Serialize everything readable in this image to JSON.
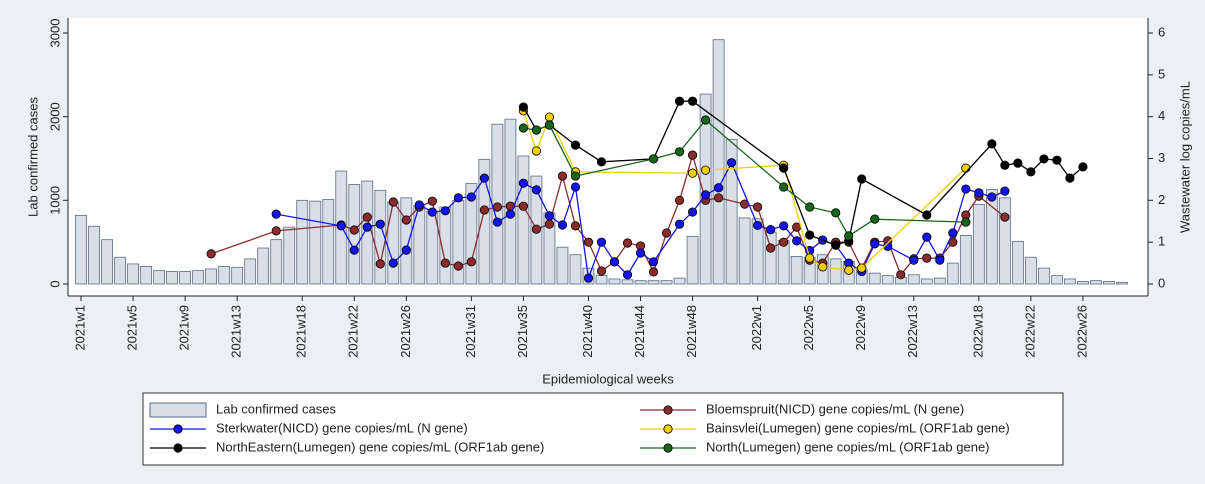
{
  "chart_data": {
    "type": "combo",
    "x_label": "Epidemiological weeks",
    "y_label": "Lab confirmed cases",
    "y2_label": "Wastewater log copies/mL",
    "xlim": [
      0,
      83
    ],
    "ylim": [
      0,
      3000
    ],
    "yticks": [
      0,
      1000,
      2000,
      3000
    ],
    "y2lim": [
      0,
      6
    ],
    "y2ticks": [
      0,
      1,
      2,
      3,
      4,
      5,
      6
    ],
    "xticks": [
      {
        "value": 1,
        "label": "2021w1"
      },
      {
        "value": 5,
        "label": "2021w5"
      },
      {
        "value": 9,
        "label": "2021w9"
      },
      {
        "value": 13,
        "label": "2021w13"
      },
      {
        "value": 18,
        "label": "2021w18"
      },
      {
        "value": 22,
        "label": "2021w22"
      },
      {
        "value": 26,
        "label": "2021w26"
      },
      {
        "value": 31,
        "label": "2021w31"
      },
      {
        "value": 35,
        "label": "2021w35"
      },
      {
        "value": 40,
        "label": "2021w40"
      },
      {
        "value": 44,
        "label": "2021w44"
      },
      {
        "value": 48,
        "label": "2021w48"
      },
      {
        "value": 53,
        "label": "2022w1"
      },
      {
        "value": 57,
        "label": "2022w5"
      },
      {
        "value": 61,
        "label": "2022w9"
      },
      {
        "value": 65,
        "label": "2022w13"
      },
      {
        "value": 70,
        "label": "2022w18"
      },
      {
        "value": 74,
        "label": "2022w22"
      },
      {
        "value": 78,
        "label": "2022w26"
      }
    ],
    "series": [
      {
        "name": "Lab confirmed cases",
        "type": "bar",
        "color": "#d9dfe9",
        "edge": "#5a6b85",
        "x": [
          1,
          2,
          3,
          4,
          5,
          6,
          7,
          8,
          9,
          10,
          11,
          12,
          13,
          14,
          15,
          16,
          17,
          18,
          19,
          20,
          21,
          22,
          23,
          24,
          25,
          26,
          27,
          28,
          29,
          30,
          31,
          32,
          33,
          34,
          35,
          36,
          37,
          38,
          39,
          40,
          41,
          42,
          43,
          44,
          45,
          46,
          47,
          48,
          49,
          50,
          51,
          52,
          53,
          54,
          55,
          56,
          57,
          58,
          59,
          60,
          61,
          62,
          63,
          64,
          65,
          66,
          67,
          68,
          69,
          70,
          71,
          72,
          73,
          74,
          75,
          76,
          77,
          78,
          79,
          80,
          81
        ],
        "values": [
          820,
          690,
          530,
          320,
          240,
          210,
          160,
          150,
          150,
          160,
          180,
          210,
          200,
          300,
          430,
          530,
          680,
          1000,
          990,
          1010,
          1350,
          1190,
          1230,
          1120,
          980,
          1030,
          940,
          870,
          920,
          1000,
          1200,
          1490,
          1910,
          1970,
          1530,
          1290,
          850,
          440,
          350,
          190,
          100,
          60,
          50,
          40,
          40,
          40,
          70,
          570,
          2270,
          2920,
          1730,
          790,
          780,
          620,
          520,
          330,
          320,
          350,
          300,
          270,
          170,
          130,
          100,
          80,
          110,
          60,
          70,
          250,
          580,
          950,
          1130,
          1030,
          510,
          320,
          190,
          100,
          60,
          30,
          40,
          30,
          20
        ]
      },
      {
        "name": "Bloemspruit(NICD) gene copies/mL (N gene)",
        "type": "line",
        "axis": "y2",
        "color": "#8b2c2c",
        "x": [
          11,
          16,
          21,
          22,
          23,
          24,
          25,
          26,
          27,
          28,
          29,
          30,
          31,
          32,
          33,
          34,
          35,
          36,
          37,
          38,
          39,
          40,
          41,
          42,
          43,
          44,
          45,
          46,
          47,
          48,
          49,
          50,
          52,
          53,
          54,
          55,
          56,
          57,
          58,
          59,
          60,
          61,
          62,
          63,
          64,
          65,
          66,
          67,
          68,
          69,
          70,
          72
        ],
        "values": [
          0.72,
          1.27,
          1.41,
          1.29,
          1.6,
          0.48,
          1.96,
          1.53,
          1.84,
          1.98,
          0.5,
          0.43,
          0.53,
          1.77,
          1.84,
          1.86,
          1.86,
          1.31,
          1.43,
          2.58,
          1.39,
          1.0,
          0.31,
          0.53,
          0.98,
          0.91,
          0.29,
          1.22,
          2.0,
          3.08,
          2.0,
          2.06,
          1.91,
          1.84,
          0.86,
          1.0,
          1.36,
          0.57,
          0.5,
          1.0,
          1.0,
          0.38,
          1.0,
          1.03,
          0.22,
          0.6,
          0.62,
          0.62,
          1.0,
          1.65,
          2.1,
          1.6
        ]
      },
      {
        "name": "Sterkwater(NICD) gene copies/mL (N gene)",
        "type": "line",
        "axis": "y2",
        "color": "#1414ee",
        "x": [
          16,
          21,
          22,
          23,
          24,
          25,
          26,
          27,
          28,
          29,
          30,
          31,
          32,
          33,
          34,
          35,
          36,
          37,
          38,
          39,
          40,
          41,
          42,
          43,
          44,
          45,
          47,
          48,
          49,
          50,
          51,
          53,
          54,
          55,
          56,
          57,
          58,
          59,
          60,
          61,
          62,
          63,
          65,
          66,
          67,
          68,
          69,
          70,
          71,
          72
        ],
        "values": [
          1.67,
          1.39,
          0.81,
          1.36,
          1.43,
          0.5,
          0.81,
          1.89,
          1.72,
          1.75,
          2.06,
          2.08,
          2.53,
          1.48,
          1.67,
          2.41,
          2.25,
          1.63,
          1.41,
          2.32,
          0.14,
          1.0,
          0.53,
          0.22,
          0.74,
          0.53,
          1.43,
          1.72,
          2.13,
          2.3,
          2.9,
          1.4,
          1.3,
          1.39,
          1.03,
          0.8,
          1.05,
          0.93,
          0.5,
          0.3,
          0.96,
          0.9,
          0.57,
          1.12,
          0.57,
          1.22,
          2.27,
          2.18,
          2.08,
          2.22
        ]
      },
      {
        "name": "Bainsvlei(Lumegen) gene copies/mL (ORF1ab gene)",
        "type": "line",
        "axis": "y2",
        "color": "#f2cf00",
        "x": [
          35,
          36,
          37,
          39,
          48,
          49,
          55,
          57,
          58,
          60,
          61,
          69
        ],
        "values": [
          4.14,
          3.18,
          3.99,
          2.68,
          2.65,
          2.72,
          2.84,
          0.62,
          0.41,
          0.33,
          0.38,
          2.77
        ]
      },
      {
        "name": "NorthEastern(Lumegen) gene copies/mL (ORF1ab gene)",
        "type": "line",
        "axis": "y2",
        "color": "#000000",
        "x": [
          35,
          36,
          37,
          39,
          41,
          45,
          47,
          48,
          55,
          57,
          59,
          60,
          61,
          66,
          71,
          72,
          73,
          74,
          75,
          76,
          77,
          78
        ],
        "values": [
          4.23,
          3.68,
          3.8,
          3.32,
          2.92,
          2.99,
          4.37,
          4.37,
          2.77,
          1.17,
          0.93,
          1.03,
          2.51,
          1.65,
          3.35,
          2.84,
          2.89,
          2.68,
          2.99,
          2.96,
          2.53,
          2.8
        ]
      },
      {
        "name": "North(Lumegen) gene copies/mL (ORF1ab gene)",
        "type": "line",
        "axis": "y2",
        "color": "#17661a",
        "x": [
          35,
          36,
          37,
          39,
          45,
          47,
          49,
          55,
          57,
          59,
          60,
          62,
          69
        ],
        "values": [
          3.73,
          3.68,
          3.8,
          2.58,
          2.99,
          3.16,
          3.92,
          2.32,
          1.84,
          1.7,
          1.15,
          1.55,
          1.48
        ]
      }
    ]
  }
}
